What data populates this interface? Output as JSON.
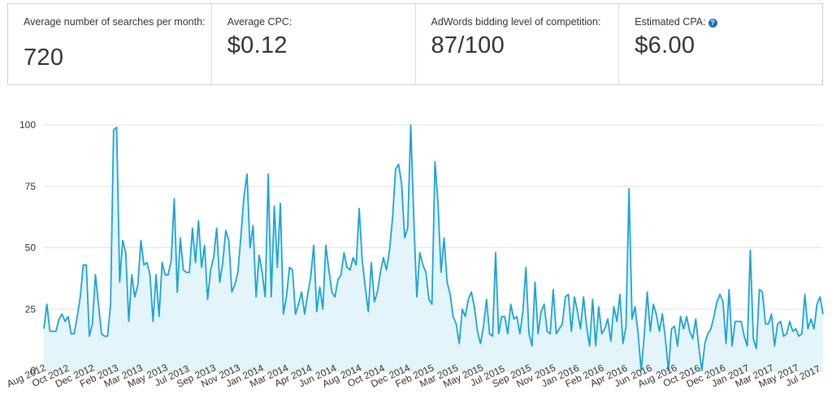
{
  "stats": {
    "searches_label": "Average number of searches per month:",
    "searches_value": "720",
    "cpc_label": "Average CPC:",
    "cpc_value": "$0.12",
    "competition_label": "AdWords bidding level of competition:",
    "competition_value": "87/100",
    "cpa_label": "Estimated CPA:",
    "cpa_value": "$6.00",
    "help_icon": "question-circle-icon"
  },
  "chart_data": {
    "type": "area",
    "title": "",
    "xlabel": "",
    "ylabel": "",
    "ylim": [
      0,
      100
    ],
    "yticks": [
      0,
      25,
      50,
      75,
      100
    ],
    "grid": true,
    "colors": {
      "line": "#1aa3d6",
      "fill": "#e3f4fa",
      "grid": "#e2e2e2"
    },
    "xtick_labels": [
      "Aug 2012",
      "Oct 2012",
      "Dec 2012",
      "Feb 2013",
      "Mar 2013",
      "May 2013",
      "Jul 2013",
      "Sep 2013",
      "Nov 2013",
      "Jan 2014",
      "Mar 2014",
      "Apr 2014",
      "Jun 2014",
      "Aug 2014",
      "Oct 2014",
      "Dec 2014",
      "Feb 2015",
      "Mar 2015",
      "May 2015",
      "Jul 2015",
      "Sep 2015",
      "Nov 2015",
      "Jan 2016",
      "Feb 2016",
      "Apr 2016",
      "Jun 2016",
      "Aug 2016",
      "Oct 2016",
      "Dec 2016",
      "Jan 2017",
      "Mar 2017",
      "May 2017",
      "Jul 2017"
    ],
    "values": [
      17,
      27,
      16,
      16,
      16,
      21,
      23,
      20,
      22,
      15,
      15,
      22,
      30,
      43,
      43,
      14,
      19,
      39,
      27,
      15,
      14,
      14,
      27,
      98,
      99,
      36,
      53,
      48,
      20,
      39,
      30,
      35,
      53,
      43,
      44,
      39,
      20,
      39,
      22,
      44,
      39,
      39,
      45,
      70,
      32,
      54,
      41,
      40,
      40,
      58,
      44,
      61,
      42,
      51,
      29,
      41,
      46,
      58,
      36,
      44,
      57,
      53,
      32,
      35,
      40,
      55,
      71,
      80,
      50,
      59,
      30,
      47,
      40,
      30,
      80,
      30,
      67,
      42,
      68,
      23,
      30,
      42,
      41,
      23,
      27,
      32,
      23,
      31,
      38,
      51,
      24,
      34,
      25,
      51,
      41,
      32,
      30,
      37,
      39,
      48,
      42,
      41,
      46,
      43,
      66,
      45,
      34,
      24,
      44,
      28,
      32,
      40,
      46,
      41,
      49,
      62,
      82,
      84,
      76,
      54,
      58,
      100,
      62,
      30,
      48,
      43,
      40,
      29,
      27,
      85,
      68,
      40,
      54,
      36,
      31,
      22,
      19,
      11,
      25,
      22,
      29,
      32,
      26,
      16,
      11,
      18,
      29,
      15,
      14,
      48,
      15,
      22,
      22,
      15,
      27,
      21,
      22,
      15,
      24,
      42,
      15,
      10,
      36,
      15,
      24,
      27,
      16,
      15,
      33,
      15,
      17,
      19,
      30,
      31,
      16,
      30,
      24,
      17,
      30,
      18,
      10,
      29,
      10,
      26,
      15,
      17,
      21,
      12,
      26,
      20,
      31,
      11,
      18,
      74,
      21,
      26,
      15,
      0,
      14,
      32,
      16,
      27,
      23,
      16,
      23,
      13,
      0,
      17,
      18,
      10,
      22,
      17,
      22,
      16,
      13,
      21,
      10,
      0,
      11,
      15,
      17,
      22,
      28,
      31,
      28,
      11,
      33,
      10,
      20,
      20,
      20,
      14,
      10,
      49,
      13,
      9,
      33,
      32,
      19,
      19,
      23,
      10,
      19,
      20,
      14,
      15,
      20,
      16,
      17,
      14,
      15,
      31,
      17,
      21,
      17,
      27,
      30,
      23
    ]
  }
}
